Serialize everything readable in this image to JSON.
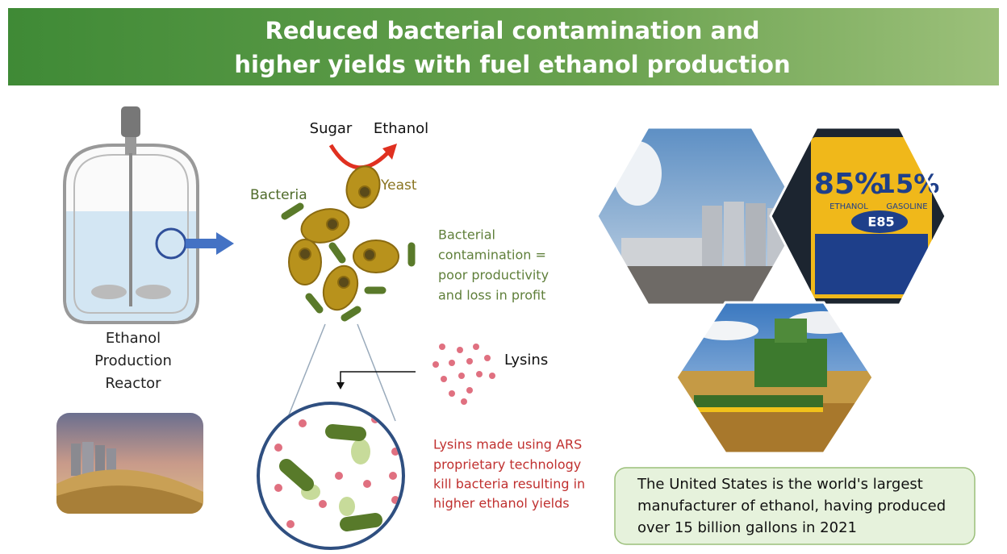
{
  "header": {
    "title": [
      "Reduced bacterial contamination and",
      "higher yields with fuel ethanol production"
    ]
  },
  "reactor": {
    "label": [
      "Ethanol",
      "Production",
      "Reactor"
    ]
  },
  "process": {
    "sugar": "Sugar",
    "ethanol": "Ethanol",
    "yeast": "Yeast",
    "bacteria": "Bacteria",
    "contamination": [
      "Bacterial",
      "contamination =",
      "poor productivity",
      "and loss in profit"
    ],
    "lysins": "Lysins",
    "lysin_effect": [
      "Lysins made using ARS",
      "proprietary technology",
      "kill bacteria resulting in",
      "higher ethanol yields"
    ]
  },
  "photos": {
    "pump": {
      "ethanol_pct": "85%",
      "gasoline_pct": "15%",
      "ethanol": "ETHANOL",
      "gasoline": "GASOLINE",
      "brand": "E85"
    }
  },
  "fact_box": [
    "The United States is the world's largest",
    "manufacturer of ethanol, having produced",
    "over 15 billion gallons in 2021"
  ]
}
